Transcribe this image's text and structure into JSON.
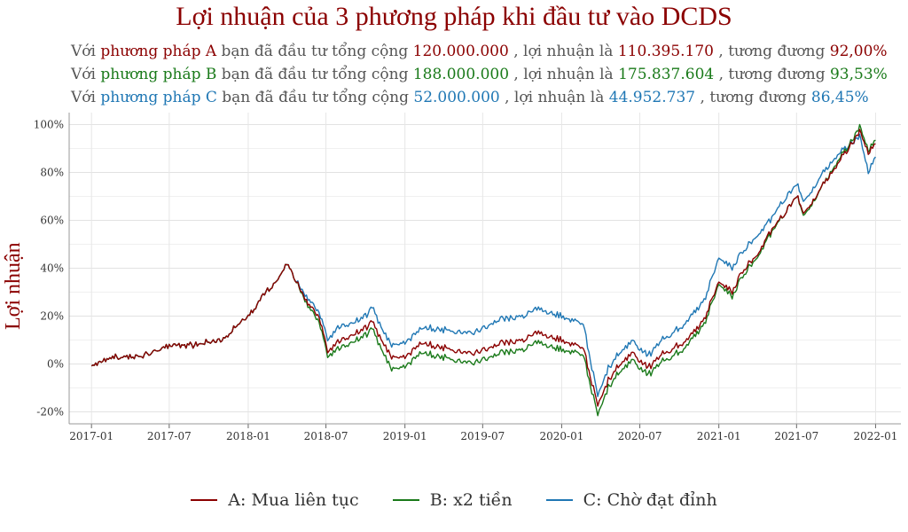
{
  "title": "Lợi nhuận của 3 phương pháp khi đầu tư vào DCDS",
  "subtitles": [
    {
      "prefix": "Với ",
      "method": "phương pháp A",
      "mid1": " bạn đã đầu tư tổng cộng ",
      "invested": "120.000.000",
      "mid2": " , lợi nhuận là ",
      "profit": "110.395.170",
      "mid3": " , tương đương ",
      "pct": "92,00%",
      "color": "#8b0000"
    },
    {
      "prefix": "Với ",
      "method": "phương pháp B",
      "mid1": " bạn đã đầu tư tổng cộng ",
      "invested": "188.000.000",
      "mid2": " , lợi nhuận là ",
      "profit": "175.837.604",
      "mid3": " , tương đương ",
      "pct": "93,53%",
      "color": "#1a7a1a"
    },
    {
      "prefix": "Với ",
      "method": "phương pháp C",
      "mid1": " bạn đã đầu tư tổng cộng ",
      "invested": "52.000.000",
      "mid2": " , lợi nhuận là ",
      "profit": "44.952.737",
      "mid3": " , tương đương ",
      "pct": "86,45%",
      "color": "#1f77b4"
    }
  ],
  "chart_data": {
    "type": "line",
    "ylabel": "Lợi nhuận",
    "xlabel": "",
    "ylim": [
      -25,
      105
    ],
    "xlim": [
      "2016-11-10",
      "2022-03-01"
    ],
    "y_ticks": [
      -20,
      0,
      20,
      40,
      60,
      80,
      100
    ],
    "y_tick_labels": [
      "-20%",
      "0%",
      "20%",
      "40%",
      "60%",
      "80%",
      "100%"
    ],
    "x_ticks": [
      "2017-01",
      "2017-07",
      "2018-01",
      "2018-07",
      "2019-01",
      "2019-07",
      "2020-01",
      "2020-07",
      "2021-01",
      "2021-07",
      "2022-01"
    ],
    "grid": true,
    "legend_position": "bottom",
    "series": [
      {
        "name": "A: Mua liên tục",
        "color": "#8b0000",
        "points": [
          [
            "2017-01-01",
            0
          ],
          [
            "2017-03-01",
            3
          ],
          [
            "2017-05-01",
            3
          ],
          [
            "2017-07-01",
            8
          ],
          [
            "2017-09-01",
            8
          ],
          [
            "2017-11-01",
            10
          ],
          [
            "2018-01-01",
            20
          ],
          [
            "2018-02-01",
            28
          ],
          [
            "2018-03-01",
            33
          ],
          [
            "2018-04-01",
            42
          ],
          [
            "2018-04-20",
            35
          ],
          [
            "2018-05-20",
            25
          ],
          [
            "2018-06-15",
            20
          ],
          [
            "2018-07-05",
            5
          ],
          [
            "2018-08-01",
            10
          ],
          [
            "2018-09-01",
            12
          ],
          [
            "2018-10-01",
            15
          ],
          [
            "2018-10-20",
            18
          ],
          [
            "2018-11-10",
            8
          ],
          [
            "2018-12-01",
            3
          ],
          [
            "2019-01-01",
            3
          ],
          [
            "2019-02-01",
            8
          ],
          [
            "2019-03-01",
            8
          ],
          [
            "2019-05-01",
            5
          ],
          [
            "2019-07-01",
            5
          ],
          [
            "2019-08-01",
            8
          ],
          [
            "2019-10-01",
            10
          ],
          [
            "2019-11-01",
            13
          ],
          [
            "2020-01-01",
            10
          ],
          [
            "2020-02-01",
            8
          ],
          [
            "2020-02-20",
            7
          ],
          [
            "2020-03-25",
            -17
          ],
          [
            "2020-04-15",
            -8
          ],
          [
            "2020-05-15",
            0
          ],
          [
            "2020-06-15",
            5
          ],
          [
            "2020-07-20",
            -2
          ],
          [
            "2020-08-20",
            4
          ],
          [
            "2020-10-01",
            8
          ],
          [
            "2020-11-01",
            12
          ],
          [
            "2020-12-01",
            20
          ],
          [
            "2021-01-01",
            35
          ],
          [
            "2021-02-01",
            30
          ],
          [
            "2021-03-01",
            40
          ],
          [
            "2021-04-01",
            45
          ],
          [
            "2021-05-01",
            55
          ],
          [
            "2021-06-01",
            62
          ],
          [
            "2021-07-01",
            70
          ],
          [
            "2021-07-20",
            63
          ],
          [
            "2021-09-01",
            75
          ],
          [
            "2021-10-01",
            83
          ],
          [
            "2021-11-01",
            91
          ],
          [
            "2021-11-25",
            97
          ],
          [
            "2021-12-15",
            88
          ],
          [
            "2022-01-01",
            92
          ]
        ]
      },
      {
        "name": "B: x2 tiền",
        "color": "#1a7a1a",
        "points": [
          [
            "2017-01-01",
            0
          ],
          [
            "2017-03-01",
            3
          ],
          [
            "2017-05-01",
            3
          ],
          [
            "2017-07-01",
            8
          ],
          [
            "2017-09-01",
            8
          ],
          [
            "2017-11-01",
            10
          ],
          [
            "2018-01-01",
            20
          ],
          [
            "2018-02-01",
            28
          ],
          [
            "2018-03-01",
            33
          ],
          [
            "2018-04-01",
            42
          ],
          [
            "2018-04-20",
            35
          ],
          [
            "2018-05-20",
            24
          ],
          [
            "2018-06-15",
            18
          ],
          [
            "2018-07-05",
            3
          ],
          [
            "2018-08-01",
            7
          ],
          [
            "2018-09-01",
            9
          ],
          [
            "2018-10-01",
            12
          ],
          [
            "2018-10-20",
            15
          ],
          [
            "2018-11-10",
            4
          ],
          [
            "2018-12-01",
            -2
          ],
          [
            "2019-01-01",
            -1
          ],
          [
            "2019-02-01",
            4
          ],
          [
            "2019-03-01",
            4
          ],
          [
            "2019-05-01",
            1
          ],
          [
            "2019-07-01",
            1
          ],
          [
            "2019-08-01",
            4
          ],
          [
            "2019-10-01",
            6
          ],
          [
            "2019-11-01",
            9
          ],
          [
            "2020-01-01",
            6
          ],
          [
            "2020-02-01",
            5
          ],
          [
            "2020-02-20",
            4
          ],
          [
            "2020-03-25",
            -21
          ],
          [
            "2020-04-15",
            -11
          ],
          [
            "2020-05-15",
            -3
          ],
          [
            "2020-06-15",
            2
          ],
          [
            "2020-07-20",
            -5
          ],
          [
            "2020-08-20",
            1
          ],
          [
            "2020-10-01",
            5
          ],
          [
            "2020-11-01",
            10
          ],
          [
            "2020-12-01",
            18
          ],
          [
            "2021-01-01",
            34
          ],
          [
            "2021-02-01",
            28
          ],
          [
            "2021-03-01",
            38
          ],
          [
            "2021-04-01",
            44
          ],
          [
            "2021-05-01",
            54
          ],
          [
            "2021-06-01",
            62
          ],
          [
            "2021-07-01",
            70
          ],
          [
            "2021-07-20",
            62
          ],
          [
            "2021-09-01",
            75
          ],
          [
            "2021-10-01",
            84
          ],
          [
            "2021-11-01",
            92
          ],
          [
            "2021-11-25",
            99
          ],
          [
            "2021-12-15",
            89
          ],
          [
            "2022-01-01",
            93.5
          ]
        ]
      },
      {
        "name": "C: Chờ đạt đỉnh",
        "color": "#1f77b4",
        "points": [
          [
            "2017-01-01",
            0
          ],
          [
            "2017-03-01",
            3
          ],
          [
            "2017-05-01",
            3
          ],
          [
            "2017-07-01",
            8
          ],
          [
            "2017-09-01",
            8
          ],
          [
            "2017-11-01",
            10
          ],
          [
            "2018-01-01",
            20
          ],
          [
            "2018-02-01",
            28
          ],
          [
            "2018-03-01",
            33
          ],
          [
            "2018-04-01",
            42
          ],
          [
            "2018-04-20",
            35
          ],
          [
            "2018-05-20",
            27
          ],
          [
            "2018-06-15",
            22
          ],
          [
            "2018-07-05",
            10
          ],
          [
            "2018-08-01",
            16
          ],
          [
            "2018-09-01",
            17
          ],
          [
            "2018-10-01",
            20
          ],
          [
            "2018-10-20",
            24
          ],
          [
            "2018-11-10",
            13
          ],
          [
            "2018-12-01",
            8
          ],
          [
            "2019-01-01",
            9
          ],
          [
            "2019-02-01",
            14
          ],
          [
            "2019-03-01",
            15
          ],
          [
            "2019-05-01",
            13
          ],
          [
            "2019-07-01",
            14
          ],
          [
            "2019-08-01",
            18
          ],
          [
            "2019-10-01",
            20
          ],
          [
            "2019-11-01",
            23
          ],
          [
            "2020-01-01",
            20
          ],
          [
            "2020-02-01",
            18
          ],
          [
            "2020-02-20",
            17
          ],
          [
            "2020-03-25",
            -13
          ],
          [
            "2020-04-15",
            -3
          ],
          [
            "2020-05-15",
            5
          ],
          [
            "2020-06-15",
            10
          ],
          [
            "2020-07-20",
            3
          ],
          [
            "2020-08-20",
            10
          ],
          [
            "2020-10-01",
            15
          ],
          [
            "2020-11-01",
            20
          ],
          [
            "2020-12-01",
            28
          ],
          [
            "2021-01-01",
            45
          ],
          [
            "2021-02-01",
            40
          ],
          [
            "2021-03-01",
            48
          ],
          [
            "2021-04-01",
            53
          ],
          [
            "2021-05-01",
            60
          ],
          [
            "2021-06-01",
            68
          ],
          [
            "2021-07-01",
            75
          ],
          [
            "2021-07-20",
            68
          ],
          [
            "2021-09-01",
            80
          ],
          [
            "2021-10-01",
            87
          ],
          [
            "2021-11-01",
            92
          ],
          [
            "2021-11-25",
            95
          ],
          [
            "2021-12-15",
            80
          ],
          [
            "2022-01-01",
            86.5
          ]
        ]
      }
    ]
  }
}
